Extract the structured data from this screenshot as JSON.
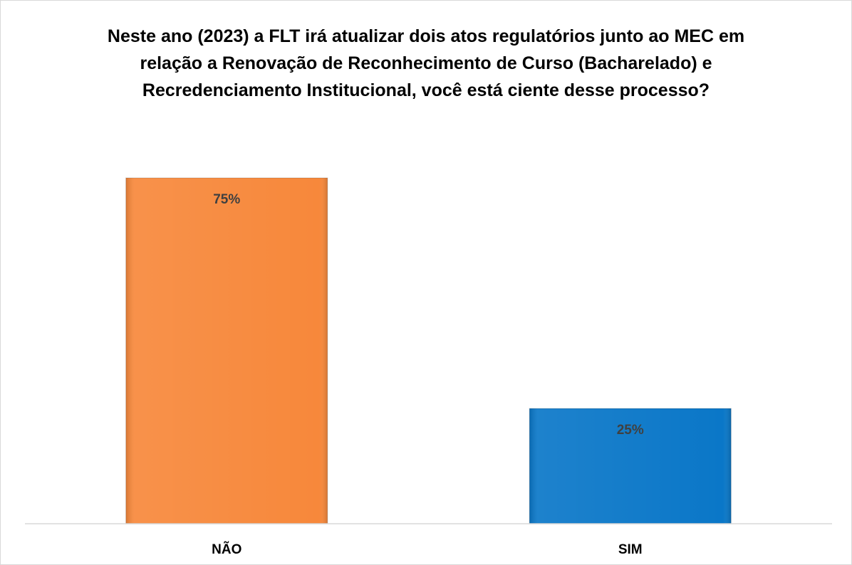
{
  "chart_data": {
    "type": "bar",
    "title": "Neste ano (2023) a FLT irá atualizar dois atos regulatórios junto ao MEC em relação a Renovação de Reconhecimento de Curso (Bacharelado) e Recredenciamento Institucional, você está ciente desse processo?",
    "categories": [
      "NÃO",
      "SIM"
    ],
    "values": [
      75,
      25
    ],
    "value_labels": [
      "75%",
      "25%"
    ],
    "colors": [
      "#f7883b",
      "#0a77c8"
    ]
  }
}
